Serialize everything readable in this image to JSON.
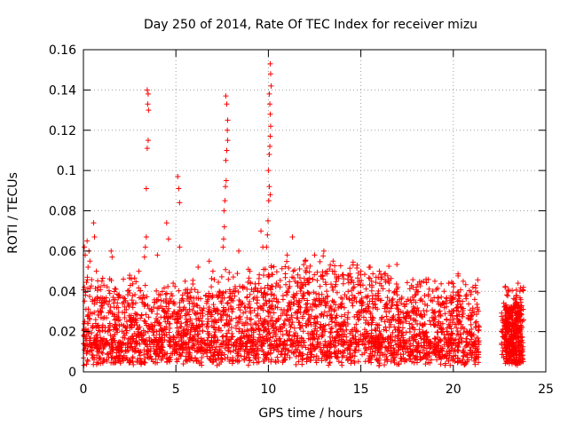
{
  "chart_data": {
    "type": "scatter",
    "title": "Day 250 of 2014, Rate Of TEC Index for receiver mizu",
    "xlabel": "GPS time / hours",
    "ylabel": "ROTI / TECUs",
    "xlim": [
      0,
      25
    ],
    "ylim": [
      0,
      0.16
    ],
    "xticks": [
      0,
      5,
      10,
      15,
      20,
      25
    ],
    "xtick_labels": [
      "0",
      "5",
      "10",
      "15",
      "20",
      "25"
    ],
    "yticks": [
      0,
      0.02,
      0.04,
      0.06,
      0.08,
      0.1,
      0.12,
      0.14,
      0.16
    ],
    "ytick_labels": [
      "0",
      "0.02",
      "0.04",
      "0.06",
      "0.08",
      "0.1",
      "0.12",
      "0.14",
      "0.16"
    ],
    "grid": true,
    "marker": "+",
    "color": "#ff0000",
    "data_gap_hours": [
      21.4,
      22.6
    ],
    "series": [
      {
        "name": "ROTI",
        "points": [
          [
            0.05,
            0.062
          ],
          [
            0.1,
            0.058
          ],
          [
            0.2,
            0.065
          ],
          [
            0.25,
            0.052
          ],
          [
            0.3,
            0.06
          ],
          [
            0.35,
            0.055
          ],
          [
            0.55,
            0.074
          ],
          [
            0.6,
            0.067
          ],
          [
            0.7,
            0.05
          ],
          [
            1.0,
            0.045
          ],
          [
            1.5,
            0.06
          ],
          [
            1.55,
            0.057
          ],
          [
            2.5,
            0.048
          ],
          [
            3.0,
            0.05
          ],
          [
            3.45,
            0.14
          ],
          [
            3.5,
            0.138
          ],
          [
            3.48,
            0.133
          ],
          [
            3.52,
            0.13
          ],
          [
            3.5,
            0.115
          ],
          [
            3.45,
            0.111
          ],
          [
            3.4,
            0.091
          ],
          [
            3.4,
            0.067
          ],
          [
            3.35,
            0.062
          ],
          [
            3.3,
            0.057
          ],
          [
            4.0,
            0.058
          ],
          [
            4.5,
            0.074
          ],
          [
            4.6,
            0.066
          ],
          [
            5.1,
            0.097
          ],
          [
            5.15,
            0.091
          ],
          [
            5.2,
            0.084
          ],
          [
            5.2,
            0.062
          ],
          [
            5.5,
            0.045
          ],
          [
            6.2,
            0.052
          ],
          [
            6.8,
            0.055
          ],
          [
            7.0,
            0.05
          ],
          [
            7.7,
            0.137
          ],
          [
            7.75,
            0.133
          ],
          [
            7.8,
            0.125
          ],
          [
            7.78,
            0.12
          ],
          [
            7.8,
            0.115
          ],
          [
            7.75,
            0.11
          ],
          [
            7.7,
            0.105
          ],
          [
            7.72,
            0.095
          ],
          [
            7.68,
            0.092
          ],
          [
            7.65,
            0.085
          ],
          [
            7.6,
            0.08
          ],
          [
            7.62,
            0.072
          ],
          [
            7.58,
            0.066
          ],
          [
            7.55,
            0.062
          ],
          [
            8.4,
            0.06
          ],
          [
            9.0,
            0.05
          ],
          [
            9.6,
            0.07
          ],
          [
            9.7,
            0.062
          ],
          [
            10.1,
            0.153
          ],
          [
            10.12,
            0.148
          ],
          [
            10.15,
            0.142
          ],
          [
            10.05,
            0.138
          ],
          [
            10.08,
            0.133
          ],
          [
            10.1,
            0.128
          ],
          [
            10.12,
            0.122
          ],
          [
            10.1,
            0.117
          ],
          [
            10.08,
            0.112
          ],
          [
            10.05,
            0.108
          ],
          [
            10.0,
            0.1
          ],
          [
            10.05,
            0.092
          ],
          [
            10.1,
            0.088
          ],
          [
            10.02,
            0.085
          ],
          [
            9.98,
            0.075
          ],
          [
            9.95,
            0.068
          ],
          [
            9.9,
            0.062
          ],
          [
            11.3,
            0.067
          ],
          [
            12.0,
            0.055
          ],
          [
            12.5,
            0.058
          ],
          [
            13.0,
            0.06
          ],
          [
            13.5,
            0.055
          ],
          [
            14.0,
            0.048
          ],
          [
            14.8,
            0.053
          ],
          [
            15.0,
            0.05
          ],
          [
            15.5,
            0.052
          ],
          [
            16.0,
            0.05
          ],
          [
            16.5,
            0.045
          ],
          [
            17.0,
            0.042
          ],
          [
            18.0,
            0.042
          ],
          [
            19.0,
            0.045
          ],
          [
            19.5,
            0.04
          ],
          [
            20.0,
            0.037
          ],
          [
            20.5,
            0.035
          ],
          [
            21.2,
            0.043
          ],
          [
            22.8,
            0.042
          ],
          [
            23.5,
            0.044
          ],
          [
            23.6,
            0.04
          ]
        ]
      }
    ]
  }
}
